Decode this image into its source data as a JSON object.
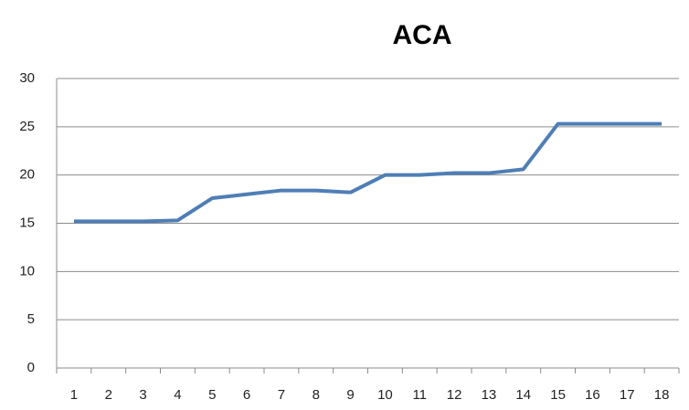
{
  "chart_data": {
    "type": "line",
    "title": "ACA",
    "categories": [
      "1",
      "2",
      "3",
      "4",
      "5",
      "6",
      "7",
      "8",
      "9",
      "10",
      "11",
      "12",
      "13",
      "14",
      "15",
      "16",
      "17",
      "18"
    ],
    "series": [
      {
        "name": "ACA",
        "color": "#4f7eb5",
        "values": [
          15.2,
          15.2,
          15.2,
          15.3,
          17.6,
          18.0,
          18.4,
          18.4,
          18.2,
          20.0,
          20.0,
          20.2,
          20.2,
          20.6,
          25.3,
          25.3,
          25.3,
          25.3
        ]
      }
    ],
    "ylim": [
      0,
      30
    ],
    "yticks": [
      0,
      5,
      10,
      15,
      20,
      25,
      30
    ],
    "grid": true
  }
}
